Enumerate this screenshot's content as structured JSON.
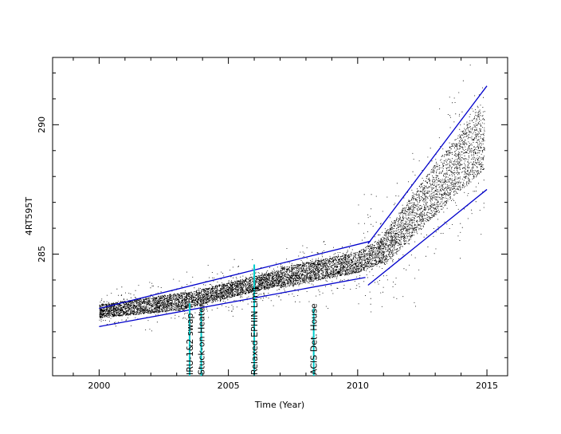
{
  "chart_data": {
    "type": "scatter",
    "title": "",
    "xlabel": "Time (Year)",
    "ylabel": "4RT595T",
    "xlim": [
      1998.2,
      2015.8
    ],
    "ylim": [
      280.3,
      292.6
    ],
    "xticks": [
      2000,
      2005,
      2010,
      2015
    ],
    "yticks": [
      285,
      290
    ],
    "grid": false,
    "legend": "none",
    "colors": {
      "points": "#000000",
      "trend_lines": "#0000cc",
      "event_markers": "#00cccc"
    },
    "trend_lines": [
      {
        "x": [
          2000.0,
          2010.5
        ],
        "y": [
          282.9,
          285.5
        ]
      },
      {
        "x": [
          2000.0,
          2010.3
        ],
        "y": [
          282.2,
          284.1
        ]
      },
      {
        "x": [
          2010.4,
          2015.0
        ],
        "y": [
          285.4,
          291.5
        ]
      },
      {
        "x": [
          2010.4,
          2015.0
        ],
        "y": [
          283.8,
          287.5
        ]
      }
    ],
    "events": [
      {
        "label": "IRU-1&2 swap",
        "x": 2003.5,
        "y_top": 283.1
      },
      {
        "label": "Stuck-on Heater",
        "x": 2003.95,
        "y_top": 282.9
      },
      {
        "label": "Relaxed EPHIN Limit",
        "x": 2006.0,
        "y_top": 284.6
      },
      {
        "label": "ACIS Det. House",
        "x": 2008.3,
        "y_top": 282.9
      }
    ],
    "density_segments": [
      {
        "x": [
          2000.0,
          2003.3
        ],
        "center": [
          282.8,
          283.2
        ],
        "spread": [
          0.25,
          0.35
        ],
        "noise": 0.15
      },
      {
        "x": [
          2003.3,
          2007.0
        ],
        "center": [
          283.2,
          284.1
        ],
        "spread": [
          0.3,
          0.3
        ],
        "noise": 0.2
      },
      {
        "x": [
          2007.0,
          2010.0
        ],
        "center": [
          284.1,
          284.7
        ],
        "spread": [
          0.4,
          0.4
        ],
        "noise": 0.25
      },
      {
        "x": [
          2010.0,
          2011.0
        ],
        "center": [
          284.7,
          285.2
        ],
        "spread": [
          0.4,
          0.5
        ],
        "noise": 0.45
      },
      {
        "x": [
          2011.0,
          2013.0
        ],
        "center": [
          285.2,
          287.5
        ],
        "spread": [
          0.6,
          1.0
        ],
        "noise": 0.6
      },
      {
        "x": [
          2013.0,
          2014.9
        ],
        "center": [
          287.5,
          289.6
        ],
        "spread": [
          1.0,
          1.3
        ],
        "noise": 0.7
      }
    ]
  }
}
